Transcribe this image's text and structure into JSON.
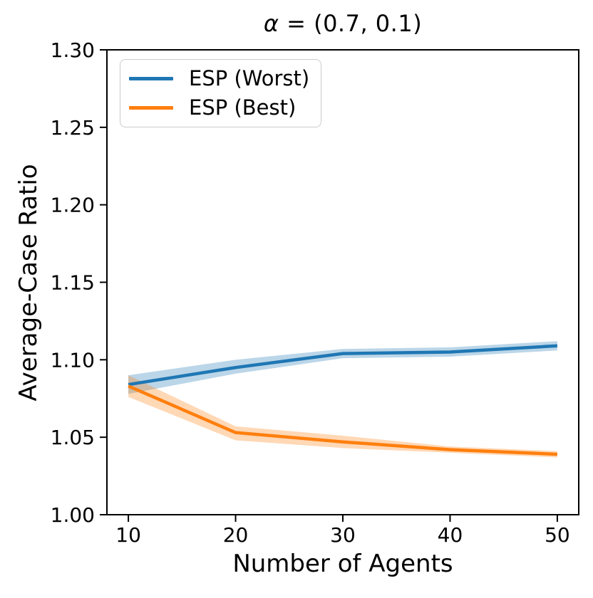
{
  "figure": {
    "title": {
      "alpha": "α",
      "rest": " = (0.7, 0.1)"
    },
    "xlabel": "Number of Agents",
    "ylabel": "Average-Case Ratio"
  },
  "chart_data": {
    "type": "line",
    "title": "α = (0.7, 0.1)",
    "xlabel": "Number of Agents",
    "ylabel": "Average-Case Ratio",
    "grid": false,
    "legend_position": "upper left",
    "x": [
      10,
      20,
      30,
      40,
      50
    ],
    "xlim": [
      8,
      52
    ],
    "ylim": [
      1.0,
      1.3
    ],
    "xtick_values": [
      10,
      20,
      30,
      40,
      50
    ],
    "xtick_labels": [
      "10",
      "20",
      "30",
      "40",
      "50"
    ],
    "ytick_values": [
      1.0,
      1.05,
      1.1,
      1.15,
      1.2,
      1.25,
      1.3
    ],
    "ytick_labels": [
      "1.00",
      "1.05",
      "1.10",
      "1.15",
      "1.20",
      "1.25",
      "1.30"
    ],
    "band_opacity": 0.3,
    "series": [
      {
        "name": "ESP (Worst)",
        "color": "#1f77b4",
        "values": [
          1.084,
          1.095,
          1.104,
          1.105,
          1.109
        ],
        "band_upper": [
          1.09,
          1.1,
          1.107,
          1.108,
          1.112
        ],
        "band_lower": [
          1.078,
          1.091,
          1.101,
          1.102,
          1.106
        ]
      },
      {
        "name": "ESP (Best)",
        "color": "#ff7f0e",
        "values": [
          1.083,
          1.053,
          1.047,
          1.042,
          1.039
        ],
        "band_upper": [
          1.09,
          1.057,
          1.051,
          1.044,
          1.041
        ],
        "band_lower": [
          1.076,
          1.048,
          1.043,
          1.04,
          1.037
        ]
      }
    ]
  }
}
